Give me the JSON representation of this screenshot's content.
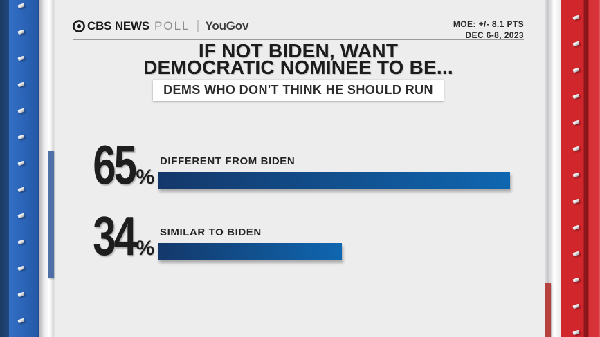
{
  "header": {
    "brand_cbs": "CBS NEWS",
    "brand_poll": "POLL",
    "brand_partner": "YouGov",
    "moe": "MOE: +/- 8.1 PTS",
    "date": "DEC 6-8, 2023"
  },
  "title": {
    "line1": "IF NOT BIDEN, WANT",
    "line2": "DEMOCRATIC NOMINEE TO BE..."
  },
  "subtitle": "DEMS WHO DON'T THINK HE SHOULD RUN",
  "chart_data": {
    "type": "bar",
    "orientation": "horizontal",
    "title": "IF NOT BIDEN, WANT DEMOCRATIC NOMINEE TO BE...",
    "subtitle": "DEMS WHO DON'T THINK HE SHOULD RUN",
    "categories": [
      "DIFFERENT FROM BIDEN",
      "SIMILAR TO BIDEN"
    ],
    "values": [
      65,
      34
    ],
    "unit": "%",
    "xlim": [
      0,
      65
    ],
    "grid": false,
    "legend": false,
    "bar_color_start": "#14386a",
    "bar_color_end": "#0f66b0"
  },
  "colors": {
    "background": "#ededee",
    "left_strip_blue": "#2a62b5",
    "left_strip_navy": "#1b3a63",
    "right_strip_red": "#d0262c",
    "right_strip_dark_red": "#8c161a",
    "text": "#1f1f1f"
  }
}
